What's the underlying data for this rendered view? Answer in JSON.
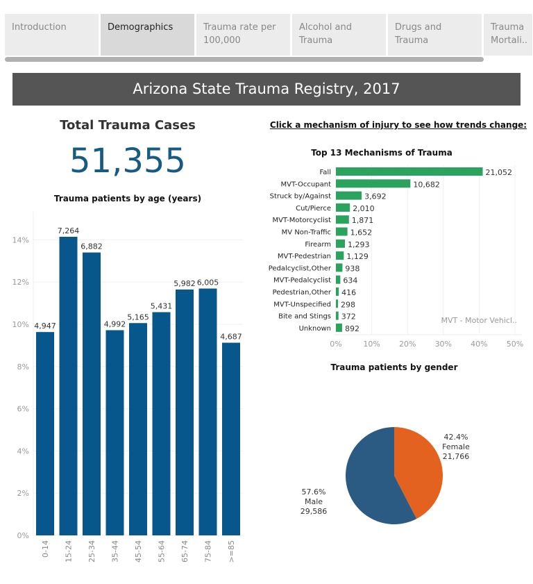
{
  "tabs": [
    "Introduction",
    "Demographics",
    "Trauma rate per 100,000",
    "Alcohol and Trauma",
    "Drugs and Trauma",
    "Trauma Mortali.."
  ],
  "active_tab": "Demographics",
  "banner": "Arizona State Trauma Registry, 2017",
  "total": {
    "label": "Total Trauma Cases",
    "value": "51,355"
  },
  "instruction": "Click a mechanism of injury to see how trends change:",
  "colors": {
    "age_bar": "#08578c",
    "mech_bar": "#2ca25f",
    "male": "#2b5a83",
    "female": "#e3621f"
  },
  "chart_data": [
    {
      "type": "bar",
      "title": "Trauma patients by age (years)",
      "categories": [
        "0-14",
        "15-24",
        "25-34",
        "35-44",
        "45-54",
        "55-64",
        "65-74",
        "75-84",
        ">=85"
      ],
      "values": [
        4947,
        7264,
        6882,
        4992,
        5165,
        5431,
        5982,
        6005,
        4687
      ],
      "labels": [
        "4,947",
        "7,264",
        "6,882",
        "4,992",
        "5,165",
        "5,431",
        "5,982",
        "6,005",
        "4,687"
      ],
      "y_unit": "percent of total",
      "yticks": [
        "0%",
        "2%",
        "4%",
        "6%",
        "8%",
        "10%",
        "12%",
        "14%"
      ],
      "ylim": [
        0,
        15.3
      ],
      "grid": true
    },
    {
      "type": "bar",
      "orientation": "horizontal",
      "title": "Top 13 Mechanisms of Trauma",
      "categories": [
        "Fall",
        "MVT-Occupant",
        "Struck by/Against",
        "Cut/Pierce",
        "MVT-Motorcyclist",
        "MV Non-Traffic",
        "Firearm",
        "MVT-Pedestrian",
        "Pedalcyclist,Other",
        "MVT-Pedalcyclist",
        "Pedestrian,Other",
        "MVT-Unspecified",
        "Bite and Stings",
        "Unknown"
      ],
      "values": [
        21052,
        10682,
        3692,
        2010,
        1871,
        1652,
        1293,
        1129,
        938,
        634,
        416,
        298,
        372,
        892
      ],
      "labels": [
        "21,052",
        "10,682",
        "3,692",
        "2,010",
        "1,871",
        "1,652",
        "1,293",
        "1,129",
        "938",
        "634",
        "416",
        "298",
        "372",
        "892"
      ],
      "xticks": [
        "0%",
        "10%",
        "20%",
        "30%",
        "40%",
        "50%"
      ],
      "xlim": [
        0,
        50
      ],
      "annotation": "MVT - Motor Vehicl..",
      "grid": true
    },
    {
      "type": "pie",
      "title": "Trauma patients by gender",
      "slices": [
        {
          "name": "Female",
          "pct": "42.4%",
          "value": 21766,
          "label": "21,766"
        },
        {
          "name": "Male",
          "pct": "57.6%",
          "value": 29586,
          "label": "29,586"
        }
      ]
    }
  ]
}
